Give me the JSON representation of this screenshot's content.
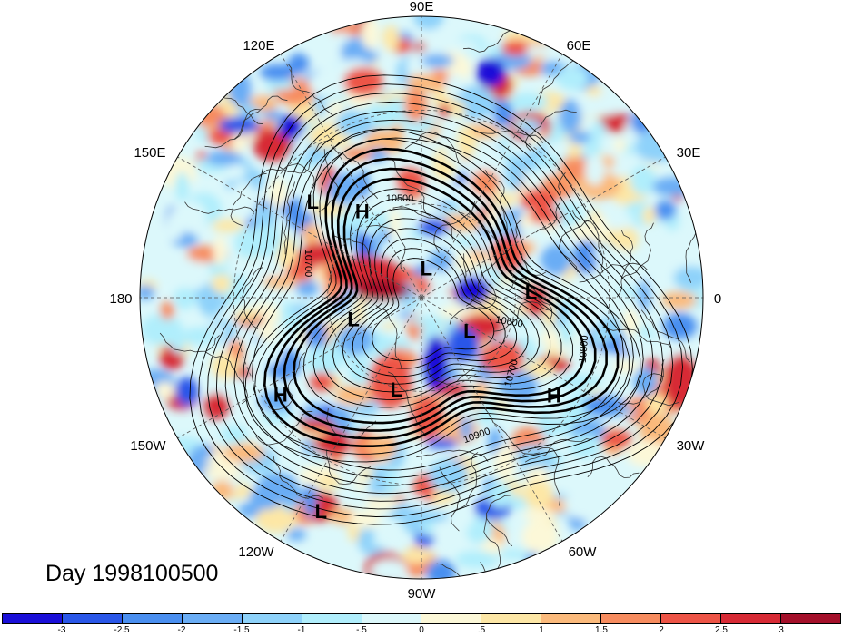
{
  "title": "Day 1998100500",
  "longitude_labels": {
    "top": "90E",
    "upper_left": "120E",
    "upper_right": "60E",
    "left_upper": "150E",
    "right_upper": "30E",
    "left": "180",
    "right": "0",
    "left_lower": "150W",
    "right_lower": "30W",
    "lower_left": "120W",
    "lower_right": "60W",
    "bottom": "90W"
  },
  "pressure_centers": [
    {
      "mark": "L",
      "lon_deg": 139,
      "lat_deg": 44
    },
    {
      "mark": "H",
      "lon_deg": 125,
      "lat_deg": 57
    },
    {
      "mark": "L",
      "lon_deg": 80,
      "lat_deg": 81
    },
    {
      "mark": "L",
      "lon_deg": 2,
      "lat_deg": 55
    },
    {
      "mark": "L",
      "lon_deg": -161,
      "lat_deg": 67
    },
    {
      "mark": "L",
      "lon_deg": -36,
      "lat_deg": 71
    },
    {
      "mark": "L",
      "lon_deg": -105,
      "lat_deg": 59
    },
    {
      "mark": "H",
      "lon_deg": -145,
      "lat_deg": 35
    },
    {
      "mark": "H",
      "lon_deg": -37,
      "lat_deg": 37
    },
    {
      "mark": "L",
      "lon_deg": -115,
      "lat_deg": 14
    }
  ],
  "contour_labels": [
    "10500",
    "10700",
    "10600",
    "10800",
    "10700",
    "10900"
  ],
  "colorbar": {
    "colors": [
      "#1a0fd8",
      "#2a57e8",
      "#4a8ff0",
      "#6aadf5",
      "#8ed2fa",
      "#b0eefc",
      "#dcf8fb",
      "#fcf8d8",
      "#fde7a6",
      "#fbba7c",
      "#f78c5f",
      "#ed5446",
      "#d72a35",
      "#a4102a"
    ],
    "tick_labels": [
      "-3",
      "-2.5",
      "-2",
      "-1.5",
      "-1",
      "-.5",
      "0",
      ".5",
      "1",
      "1.5",
      "2",
      "2.5",
      "3"
    ]
  }
}
